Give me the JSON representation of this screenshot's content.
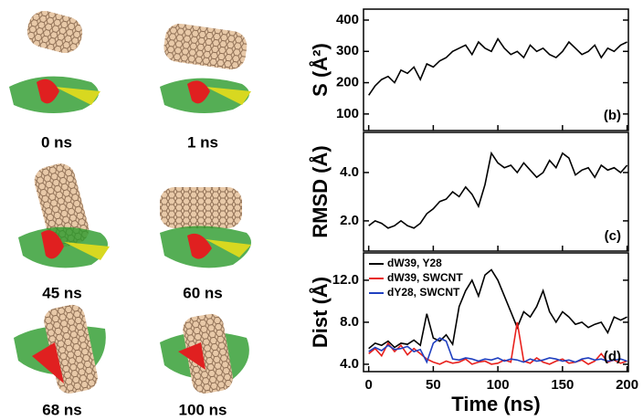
{
  "snapshots": [
    "0 ns",
    "1 ns",
    "45 ns",
    "60 ns",
    "68 ns",
    "100 ns"
  ],
  "chart_data": [
    {
      "type": "line",
      "y_label": "S (Å²)",
      "panel_label": "(b)",
      "x": [
        0,
        5,
        10,
        15,
        20,
        25,
        30,
        35,
        40,
        45,
        50,
        55,
        60,
        65,
        70,
        75,
        80,
        85,
        90,
        95,
        100,
        105,
        110,
        115,
        120,
        125,
        130,
        135,
        140,
        145,
        150,
        155,
        160,
        165,
        170,
        175,
        180,
        185,
        190,
        195,
        200
      ],
      "xlim": [
        -4,
        201
      ],
      "ylim": [
        47,
        435
      ],
      "yticks": [
        100,
        200,
        300,
        400
      ],
      "series": [
        {
          "color": "#000000",
          "values": [
            160,
            190,
            210,
            220,
            200,
            240,
            230,
            250,
            210,
            260,
            250,
            270,
            280,
            300,
            310,
            320,
            290,
            330,
            310,
            300,
            340,
            310,
            290,
            300,
            280,
            320,
            300,
            310,
            290,
            280,
            300,
            330,
            310,
            290,
            300,
            320,
            280,
            310,
            300,
            320,
            330
          ]
        }
      ]
    },
    {
      "type": "line",
      "y_label": "RMSD (Å)",
      "panel_label": "(c)",
      "x": [
        0,
        5,
        10,
        15,
        20,
        25,
        30,
        35,
        40,
        45,
        50,
        55,
        60,
        65,
        70,
        75,
        80,
        85,
        90,
        95,
        100,
        105,
        110,
        115,
        120,
        125,
        130,
        135,
        140,
        145,
        150,
        155,
        160,
        165,
        170,
        175,
        180,
        185,
        190,
        195,
        200
      ],
      "xlim": [
        -4,
        201
      ],
      "ylim": [
        0.75,
        5.66
      ],
      "yticks": [
        {
          "value": 2,
          "label": "2.0"
        },
        {
          "value": 4,
          "label": "4.0"
        }
      ],
      "series": [
        {
          "color": "#000000",
          "values": [
            1.8,
            2.0,
            1.9,
            1.7,
            1.8,
            2.0,
            1.8,
            1.7,
            1.9,
            2.3,
            2.5,
            2.8,
            2.9,
            3.2,
            3.0,
            3.4,
            3.1,
            2.6,
            3.5,
            4.8,
            4.4,
            4.2,
            4.3,
            4.0,
            4.4,
            4.1,
            3.8,
            4.0,
            4.5,
            4.2,
            4.8,
            4.6,
            3.9,
            4.1,
            4.2,
            3.8,
            4.3,
            4.1,
            4.2,
            4.0,
            4.3
          ]
        }
      ]
    },
    {
      "type": "line",
      "y_label": "Dist (Å)",
      "x_label": "Time (ns)",
      "panel_label": "(d)",
      "legend": "upper left",
      "x": [
        0,
        5,
        10,
        15,
        20,
        25,
        30,
        35,
        40,
        45,
        50,
        55,
        60,
        65,
        70,
        75,
        80,
        85,
        90,
        95,
        100,
        105,
        110,
        115,
        120,
        125,
        130,
        135,
        140,
        145,
        150,
        155,
        160,
        165,
        170,
        175,
        180,
        185,
        190,
        195,
        200
      ],
      "xlim": [
        -4,
        201
      ],
      "ylim": [
        3.3,
        14.6
      ],
      "yticks": [
        {
          "value": 4,
          "label": "4.0"
        },
        {
          "value": 8,
          "label": "8.0"
        },
        {
          "value": 12,
          "label": "12.0"
        }
      ],
      "xticks": [
        0,
        50,
        100,
        150,
        200
      ],
      "series": [
        {
          "name": "dW39, Y28",
          "color": "#000000",
          "values": [
            5.5,
            6.0,
            5.8,
            6.2,
            5.6,
            6.0,
            5.9,
            6.3,
            5.8,
            8.8,
            6.5,
            6.2,
            6.8,
            5.9,
            9.5,
            11.0,
            12.0,
            10.5,
            12.5,
            13.0,
            12.0,
            10.5,
            9.0,
            7.5,
            9.0,
            8.5,
            9.5,
            11.0,
            9.0,
            8.0,
            9.0,
            8.5,
            7.8,
            8.0,
            7.5,
            7.8,
            8.0,
            7.0,
            8.5,
            8.2,
            8.5
          ]
        },
        {
          "name": "dW39, SWCNT",
          "color": "#e8201c",
          "values": [
            5.0,
            5.5,
            4.8,
            6.0,
            5.2,
            5.8,
            4.9,
            5.5,
            5.0,
            4.5,
            4.2,
            4.0,
            4.3,
            4.1,
            4.2,
            4.5,
            4.0,
            4.2,
            4.3,
            4.0,
            4.1,
            4.4,
            4.2,
            8.0,
            4.3,
            4.1,
            4.6,
            4.2,
            4.0,
            4.3,
            4.5,
            4.1,
            4.2,
            4.4,
            4.0,
            4.3,
            5.0,
            4.2,
            4.4,
            4.1,
            4.3
          ]
        },
        {
          "name": "dY28, SWCNT",
          "color": "#2040c0",
          "values": [
            5.2,
            5.6,
            5.3,
            5.8,
            5.4,
            5.5,
            5.7,
            5.2,
            5.4,
            4.2,
            6.0,
            6.5,
            6.2,
            4.5,
            4.4,
            4.6,
            4.5,
            4.3,
            4.5,
            4.4,
            4.6,
            4.3,
            4.5,
            4.4,
            4.2,
            4.5,
            4.3,
            4.4,
            4.6,
            4.5,
            4.3,
            4.4,
            4.2,
            4.5,
            4.6,
            4.4,
            4.5,
            4.3,
            4.4,
            4.5,
            4.3
          ]
        }
      ]
    }
  ]
}
